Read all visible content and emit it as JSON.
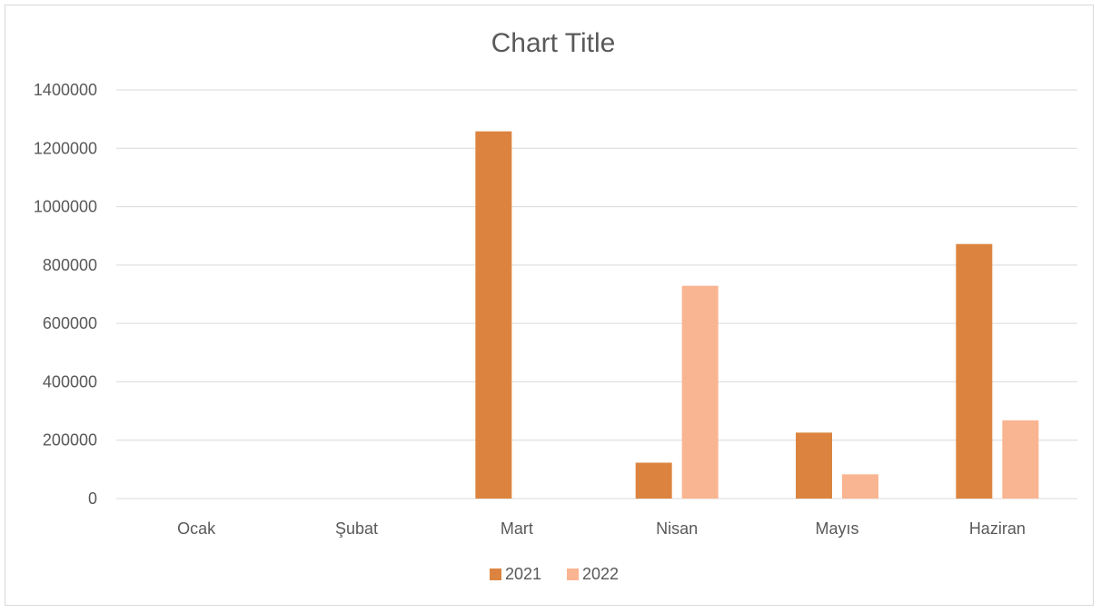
{
  "chart_data": {
    "type": "bar",
    "title": "Chart Title",
    "xlabel": "",
    "ylabel": "",
    "categories": [
      "Ocak",
      "Şubat",
      "Mart",
      "Nisan",
      "Mayıs",
      "Haziran"
    ],
    "series": [
      {
        "name": "2021",
        "values": [
          0,
          0,
          1258000,
          123000,
          226000,
          872000
        ],
        "color": "#dc843f"
      },
      {
        "name": "2022",
        "values": [
          0,
          0,
          0,
          729000,
          83000,
          268000
        ],
        "color": "#f9b591"
      }
    ],
    "ylim": [
      0,
      1400000
    ],
    "yticks": [
      "0",
      "200000",
      "400000",
      "600000",
      "800000",
      "1000000",
      "1200000",
      "1400000"
    ],
    "grid": true,
    "legend_position": "bottom"
  }
}
